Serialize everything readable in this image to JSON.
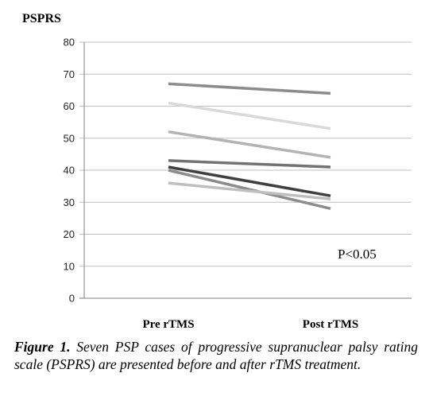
{
  "chart_data": {
    "type": "line",
    "ylabel": "PSPRS",
    "categories": [
      "Pre rTMS",
      "Post rTMS"
    ],
    "ylim": [
      0,
      80
    ],
    "yticks": [
      0,
      10,
      20,
      30,
      40,
      50,
      60,
      70,
      80
    ],
    "grid": true,
    "annotation": "P<0.05",
    "series": [
      {
        "values": [
          67,
          64
        ],
        "color": "#8c8c8c"
      },
      {
        "values": [
          61,
          53
        ],
        "color": "#d9d9d9"
      },
      {
        "values": [
          52,
          44
        ],
        "color": "#b3b3b3"
      },
      {
        "values": [
          43,
          41
        ],
        "color": "#737373"
      },
      {
        "values": [
          41,
          32
        ],
        "color": "#404040"
      },
      {
        "values": [
          40,
          28
        ],
        "color": "#8c8c8c"
      },
      {
        "values": [
          36,
          31
        ],
        "color": "#bfbfbf"
      }
    ]
  },
  "caption": {
    "label": "Figure 1.",
    "text": " Seven PSP cases of progressive supranuclear palsy rating scale (PSPRS) are presented before and after rTMS treatment."
  }
}
